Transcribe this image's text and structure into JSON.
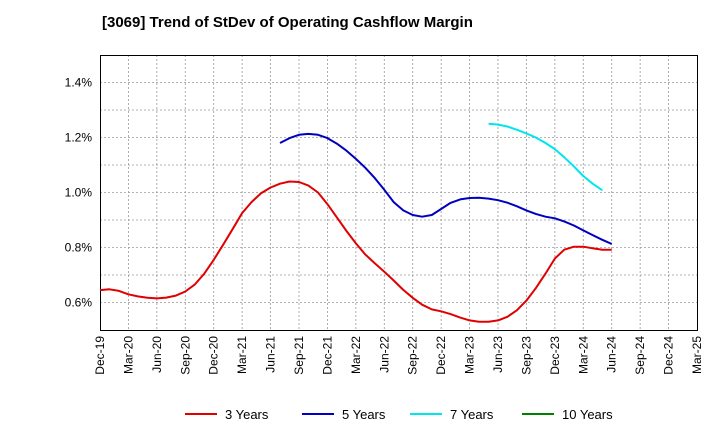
{
  "chart_data": {
    "type": "line",
    "title": "[3069]  Trend of StDev of Operating Cashflow Margin",
    "xlabel": "",
    "ylabel": "",
    "x": [
      "Dec-19",
      "Mar-20",
      "Jun-20",
      "Sep-20",
      "Dec-20",
      "Mar-21",
      "Jun-21",
      "Sep-21",
      "Dec-21",
      "Mar-22",
      "Jun-22",
      "Sep-22",
      "Dec-22",
      "Mar-23",
      "Jun-23",
      "Sep-23",
      "Dec-23",
      "Mar-24",
      "Jun-24",
      "Sep-24",
      "Dec-24",
      "Mar-25"
    ],
    "ylim": [
      0.5,
      1.5
    ],
    "yticks": [
      0.6,
      0.8,
      1.0,
      1.2,
      1.4
    ],
    "ytick_labels": [
      "0.6%",
      "0.8%",
      "1.0%",
      "1.2%",
      "1.4%"
    ],
    "grid": true,
    "legend_position": "bottom",
    "series": [
      {
        "name": "3 Years",
        "color": "#e00000",
        "points": [
          [
            0,
            0.645
          ],
          [
            0.33,
            0.648
          ],
          [
            0.67,
            0.642
          ],
          [
            1,
            0.63
          ],
          [
            1.33,
            0.622
          ],
          [
            1.67,
            0.617
          ],
          [
            2,
            0.615
          ],
          [
            2.33,
            0.618
          ],
          [
            2.67,
            0.625
          ],
          [
            3,
            0.64
          ],
          [
            3.33,
            0.665
          ],
          [
            3.67,
            0.705
          ],
          [
            4,
            0.755
          ],
          [
            4.33,
            0.81
          ],
          [
            4.67,
            0.868
          ],
          [
            5,
            0.925
          ],
          [
            5.33,
            0.965
          ],
          [
            5.67,
            0.998
          ],
          [
            6,
            1.018
          ],
          [
            6.33,
            1.032
          ],
          [
            6.67,
            1.04
          ],
          [
            7,
            1.038
          ],
          [
            7.33,
            1.025
          ],
          [
            7.67,
            1.0
          ],
          [
            8,
            0.958
          ],
          [
            8.33,
            0.91
          ],
          [
            8.67,
            0.86
          ],
          [
            9,
            0.815
          ],
          [
            9.33,
            0.775
          ],
          [
            9.67,
            0.742
          ],
          [
            10,
            0.712
          ],
          [
            10.33,
            0.68
          ],
          [
            10.67,
            0.646
          ],
          [
            11,
            0.617
          ],
          [
            11.33,
            0.592
          ],
          [
            11.67,
            0.575
          ],
          [
            12,
            0.568
          ],
          [
            12.33,
            0.558
          ],
          [
            12.67,
            0.545
          ],
          [
            13,
            0.535
          ],
          [
            13.33,
            0.53
          ],
          [
            13.67,
            0.53
          ],
          [
            14,
            0.535
          ],
          [
            14.33,
            0.548
          ],
          [
            14.67,
            0.572
          ],
          [
            15,
            0.607
          ],
          [
            15.33,
            0.652
          ],
          [
            15.67,
            0.705
          ],
          [
            16,
            0.76
          ],
          [
            16.33,
            0.792
          ],
          [
            16.67,
            0.803
          ],
          [
            17,
            0.803
          ],
          [
            17.33,
            0.797
          ],
          [
            17.67,
            0.792
          ],
          [
            18,
            0.792
          ]
        ]
      },
      {
        "name": "5 Years",
        "color": "#0000c0",
        "points": [
          [
            6.33,
            1.18
          ],
          [
            6.67,
            1.198
          ],
          [
            7,
            1.21
          ],
          [
            7.33,
            1.213
          ],
          [
            7.67,
            1.21
          ],
          [
            8,
            1.198
          ],
          [
            8.33,
            1.178
          ],
          [
            8.67,
            1.152
          ],
          [
            9,
            1.122
          ],
          [
            9.33,
            1.09
          ],
          [
            9.67,
            1.052
          ],
          [
            10,
            1.01
          ],
          [
            10.33,
            0.965
          ],
          [
            10.67,
            0.935
          ],
          [
            11,
            0.918
          ],
          [
            11.33,
            0.912
          ],
          [
            11.67,
            0.918
          ],
          [
            12,
            0.94
          ],
          [
            12.33,
            0.962
          ],
          [
            12.67,
            0.975
          ],
          [
            13,
            0.98
          ],
          [
            13.33,
            0.981
          ],
          [
            13.67,
            0.978
          ],
          [
            14,
            0.972
          ],
          [
            14.33,
            0.963
          ],
          [
            14.67,
            0.95
          ],
          [
            15,
            0.935
          ],
          [
            15.33,
            0.922
          ],
          [
            15.67,
            0.912
          ],
          [
            16,
            0.906
          ],
          [
            16.33,
            0.895
          ],
          [
            16.67,
            0.88
          ],
          [
            17,
            0.862
          ],
          [
            17.33,
            0.845
          ],
          [
            17.67,
            0.828
          ],
          [
            18,
            0.813
          ]
        ]
      },
      {
        "name": "7 Years",
        "color": "#00e5ee",
        "points": [
          [
            13.67,
            1.25
          ],
          [
            14,
            1.247
          ],
          [
            14.33,
            1.24
          ],
          [
            14.67,
            1.228
          ],
          [
            15,
            1.215
          ],
          [
            15.33,
            1.2
          ],
          [
            15.67,
            1.18
          ],
          [
            16,
            1.158
          ],
          [
            16.33,
            1.128
          ],
          [
            16.67,
            1.095
          ],
          [
            17,
            1.06
          ],
          [
            17.33,
            1.032
          ],
          [
            17.67,
            1.008
          ]
        ]
      },
      {
        "name": "10 Years",
        "color": "#008000",
        "points": []
      }
    ]
  }
}
